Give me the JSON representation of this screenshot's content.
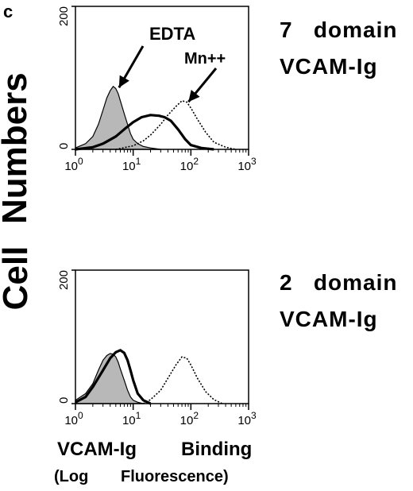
{
  "figure": {
    "panel_letter": "c",
    "y_axis_label_part1": "Cell",
    "y_axis_label_part2": "Numbers",
    "x_axis_label_line1_left": "VCAM-Ig",
    "x_axis_label_line1_right": "Binding",
    "x_axis_label_line2_left": "(Log",
    "x_axis_label_line2_right": "Fluorescence)"
  },
  "chart_data": [
    {
      "type": "area",
      "side_label_line1": "7   domain",
      "side_label_line2": "VCAM-Ig",
      "x_scale": "log",
      "xlim": [
        1,
        1000
      ],
      "ylim": [
        0,
        200
      ],
      "y_ticks": [
        "0",
        "200"
      ],
      "x_ticks": [
        {
          "base": "10",
          "exp": "0"
        },
        {
          "base": "10",
          "exp": "1"
        },
        {
          "base": "10",
          "exp": "2"
        },
        {
          "base": "10",
          "exp": "3"
        }
      ],
      "annotations": [
        {
          "text": "EDTA",
          "points_to_x": 5,
          "points_to_y": 82
        },
        {
          "text": "Mn++",
          "points_to_x": 75,
          "points_to_y": 62
        }
      ],
      "series": [
        {
          "style": "filled-gray",
          "x": [
            1.0,
            1.5,
            2.0,
            2.5,
            3.0,
            3.5,
            4.0,
            4.5,
            5.0,
            5.5,
            6.0,
            7.0,
            8.0,
            9.0,
            10,
            12,
            15,
            20,
            30
          ],
          "y": [
            2,
            8,
            18,
            35,
            55,
            72,
            82,
            88,
            85,
            78,
            68,
            50,
            35,
            22,
            14,
            8,
            4,
            2,
            0
          ]
        },
        {
          "style": "thick-solid",
          "x": [
            1.0,
            2.0,
            3.0,
            5.0,
            7.0,
            10,
            14,
            20,
            28,
            35,
            45,
            60,
            80,
            100,
            150,
            250
          ],
          "y": [
            0,
            3,
            8,
            18,
            28,
            38,
            45,
            48,
            47,
            45,
            40,
            28,
            14,
            6,
            2,
            0
          ]
        },
        {
          "style": "dotted",
          "x": [
            5,
            10,
            15,
            20,
            30,
            40,
            55,
            70,
            85,
            100,
            130,
            180,
            250,
            400,
            600
          ],
          "y": [
            0,
            5,
            12,
            20,
            35,
            48,
            60,
            68,
            66,
            58,
            42,
            24,
            10,
            3,
            0
          ]
        }
      ]
    },
    {
      "type": "area",
      "side_label_line1": "2   domain",
      "side_label_line2": "VCAM-Ig",
      "x_scale": "log",
      "xlim": [
        1,
        1000
      ],
      "ylim": [
        0,
        200
      ],
      "y_ticks": [
        "0",
        "200"
      ],
      "x_ticks": [
        {
          "base": "10",
          "exp": "0"
        },
        {
          "base": "10",
          "exp": "1"
        },
        {
          "base": "10",
          "exp": "2"
        },
        {
          "base": "10",
          "exp": "3"
        }
      ],
      "annotations": [],
      "series": [
        {
          "style": "filled-gray",
          "x": [
            1.0,
            1.5,
            2.0,
            2.5,
            3.0,
            3.5,
            4.0,
            4.5,
            5.0,
            5.5,
            6.0,
            7.0,
            8.0,
            9.0,
            10,
            12,
            15
          ],
          "y": [
            5,
            15,
            30,
            50,
            65,
            72,
            75,
            74,
            70,
            62,
            52,
            35,
            20,
            10,
            5,
            2,
            0
          ]
        },
        {
          "style": "thick-solid",
          "x": [
            1.0,
            1.5,
            2.0,
            3.0,
            4.0,
            5.0,
            6.0,
            7.0,
            8.0,
            9.0,
            10,
            12,
            15,
            20
          ],
          "y": [
            2,
            10,
            25,
            50,
            68,
            77,
            80,
            76,
            65,
            50,
            35,
            15,
            5,
            0
          ]
        },
        {
          "style": "dotted",
          "x": [
            15,
            20,
            30,
            40,
            55,
            70,
            85,
            100,
            130,
            180,
            250,
            350
          ],
          "y": [
            0,
            6,
            20,
            38,
            58,
            70,
            68,
            58,
            38,
            18,
            6,
            0
          ]
        }
      ]
    }
  ]
}
